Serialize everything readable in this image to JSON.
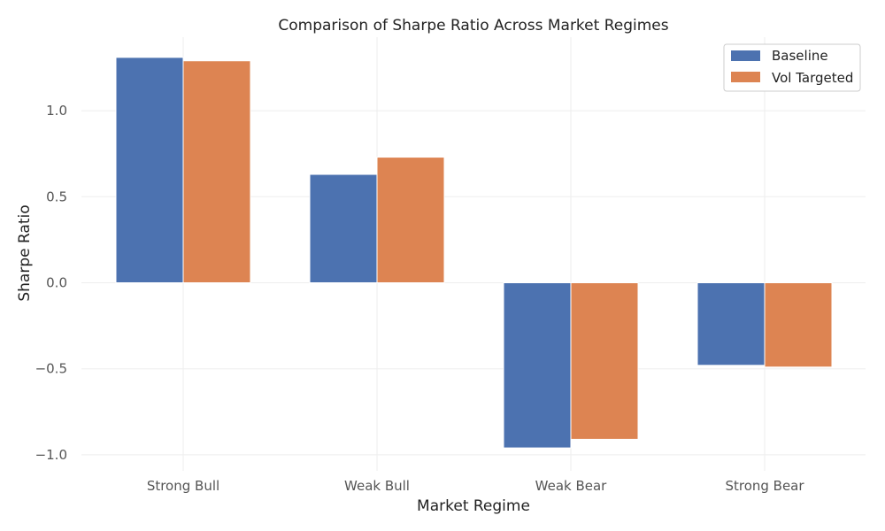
{
  "chart_data": {
    "type": "bar",
    "title": "Comparison of Sharpe Ratio Across Market Regimes",
    "xlabel": "Market Regime",
    "ylabel": "Sharpe Ratio",
    "categories": [
      "Strong Bull",
      "Weak Bull",
      "Weak Bear",
      "Strong Bear"
    ],
    "series": [
      {
        "name": "Baseline",
        "color": "#4C72B0",
        "values": [
          1.31,
          0.63,
          -0.96,
          -0.48
        ]
      },
      {
        "name": "Vol Targeted",
        "color": "#DD8452",
        "values": [
          1.29,
          0.73,
          -0.91,
          -0.49
        ]
      }
    ],
    "yticks": [
      1.0,
      0.5,
      0.0,
      -0.5,
      -1.0
    ],
    "ytick_labels": [
      "1.0",
      "0.5",
      "0.0",
      "−0.5",
      "−1.0"
    ],
    "ylim": [
      -1.07,
      1.43
    ],
    "grid": true,
    "legend_position": "top-right"
  }
}
